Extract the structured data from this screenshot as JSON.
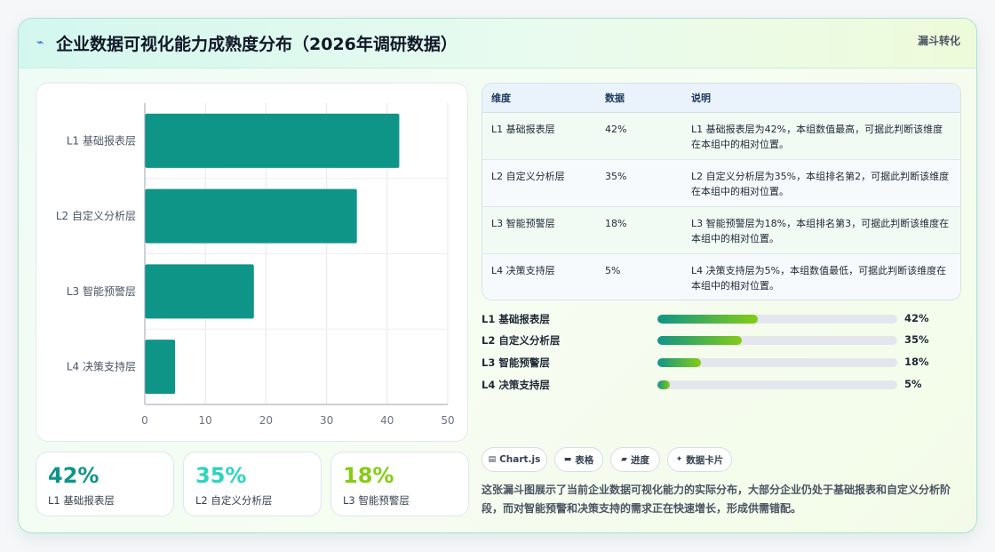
{
  "header": {
    "icon": "zigzag-icon",
    "title": "企业数据可视化能力成熟度分布（2026年调研数据）",
    "tag": "漏斗转化"
  },
  "chart_data": {
    "type": "bar",
    "orientation": "horizontal",
    "categories": [
      "L1 基础报表层",
      "L2 自定义分析层",
      "L3 智能预警层",
      "L4 决策支持层"
    ],
    "values": [
      42,
      35,
      18,
      5
    ],
    "xlim": [
      0,
      50
    ],
    "xticks": [
      "0",
      "10",
      "20",
      "30",
      "40",
      "50"
    ],
    "bar_color": "#0f9488",
    "grid": true
  },
  "kpis": [
    {
      "value": "42%",
      "label": "L1 基础报表层",
      "color": "#0f9488"
    },
    {
      "value": "35%",
      "label": "L2 自定义分析层",
      "color": "#2dd4bf"
    },
    {
      "value": "18%",
      "label": "L3 智能预警层",
      "color": "#84cc16"
    }
  ],
  "table": {
    "headers": [
      "维度",
      "数据",
      "说明"
    ],
    "rows": [
      {
        "dim": "L1 基础报表层",
        "val": "42%",
        "note": "L1 基础报表层为42%，本组数值最高，可据此判断该维度在本组中的相对位置。"
      },
      {
        "dim": "L2 自定义分析层",
        "val": "35%",
        "note": "L2 自定义分析层为35%，本组排名第2，可据此判断该维度在本组中的相对位置。"
      },
      {
        "dim": "L3 智能预警层",
        "val": "18%",
        "note": "L3 智能预警层为18%，本组排名第3，可据此判断该维度在本组中的相对位置。"
      },
      {
        "dim": "L4 决策支持层",
        "val": "5%",
        "note": "L4 决策支持层为5%，本组数值最低，可据此判断该维度在本组中的相对位置。"
      }
    ]
  },
  "progress": [
    {
      "label": "L1 基础报表层",
      "pct": "42%",
      "fraction": 0.42
    },
    {
      "label": "L2 自定义分析层",
      "pct": "35%",
      "fraction": 0.35
    },
    {
      "label": "L3 智能预警层",
      "pct": "18%",
      "fraction": 0.18
    },
    {
      "label": "L4 决策支持层",
      "pct": "5%",
      "fraction": 0.05
    }
  ],
  "chips": [
    {
      "icon": "chart-icon",
      "glyph": "▤",
      "label": "Chart.js"
    },
    {
      "icon": "table-icon",
      "glyph": "▬",
      "label": "表格"
    },
    {
      "icon": "progress-icon",
      "glyph": "▰",
      "label": "进度"
    },
    {
      "icon": "card-icon",
      "glyph": "✦",
      "label": "数据卡片"
    }
  ],
  "description": "这张漏斗图展示了当前企业数据可视化能力的实际分布，大部分企业仍处于基础报表和自定义分析阶段，而对智能预警和决策支持的需求正在快速增长，形成供需错配。"
}
